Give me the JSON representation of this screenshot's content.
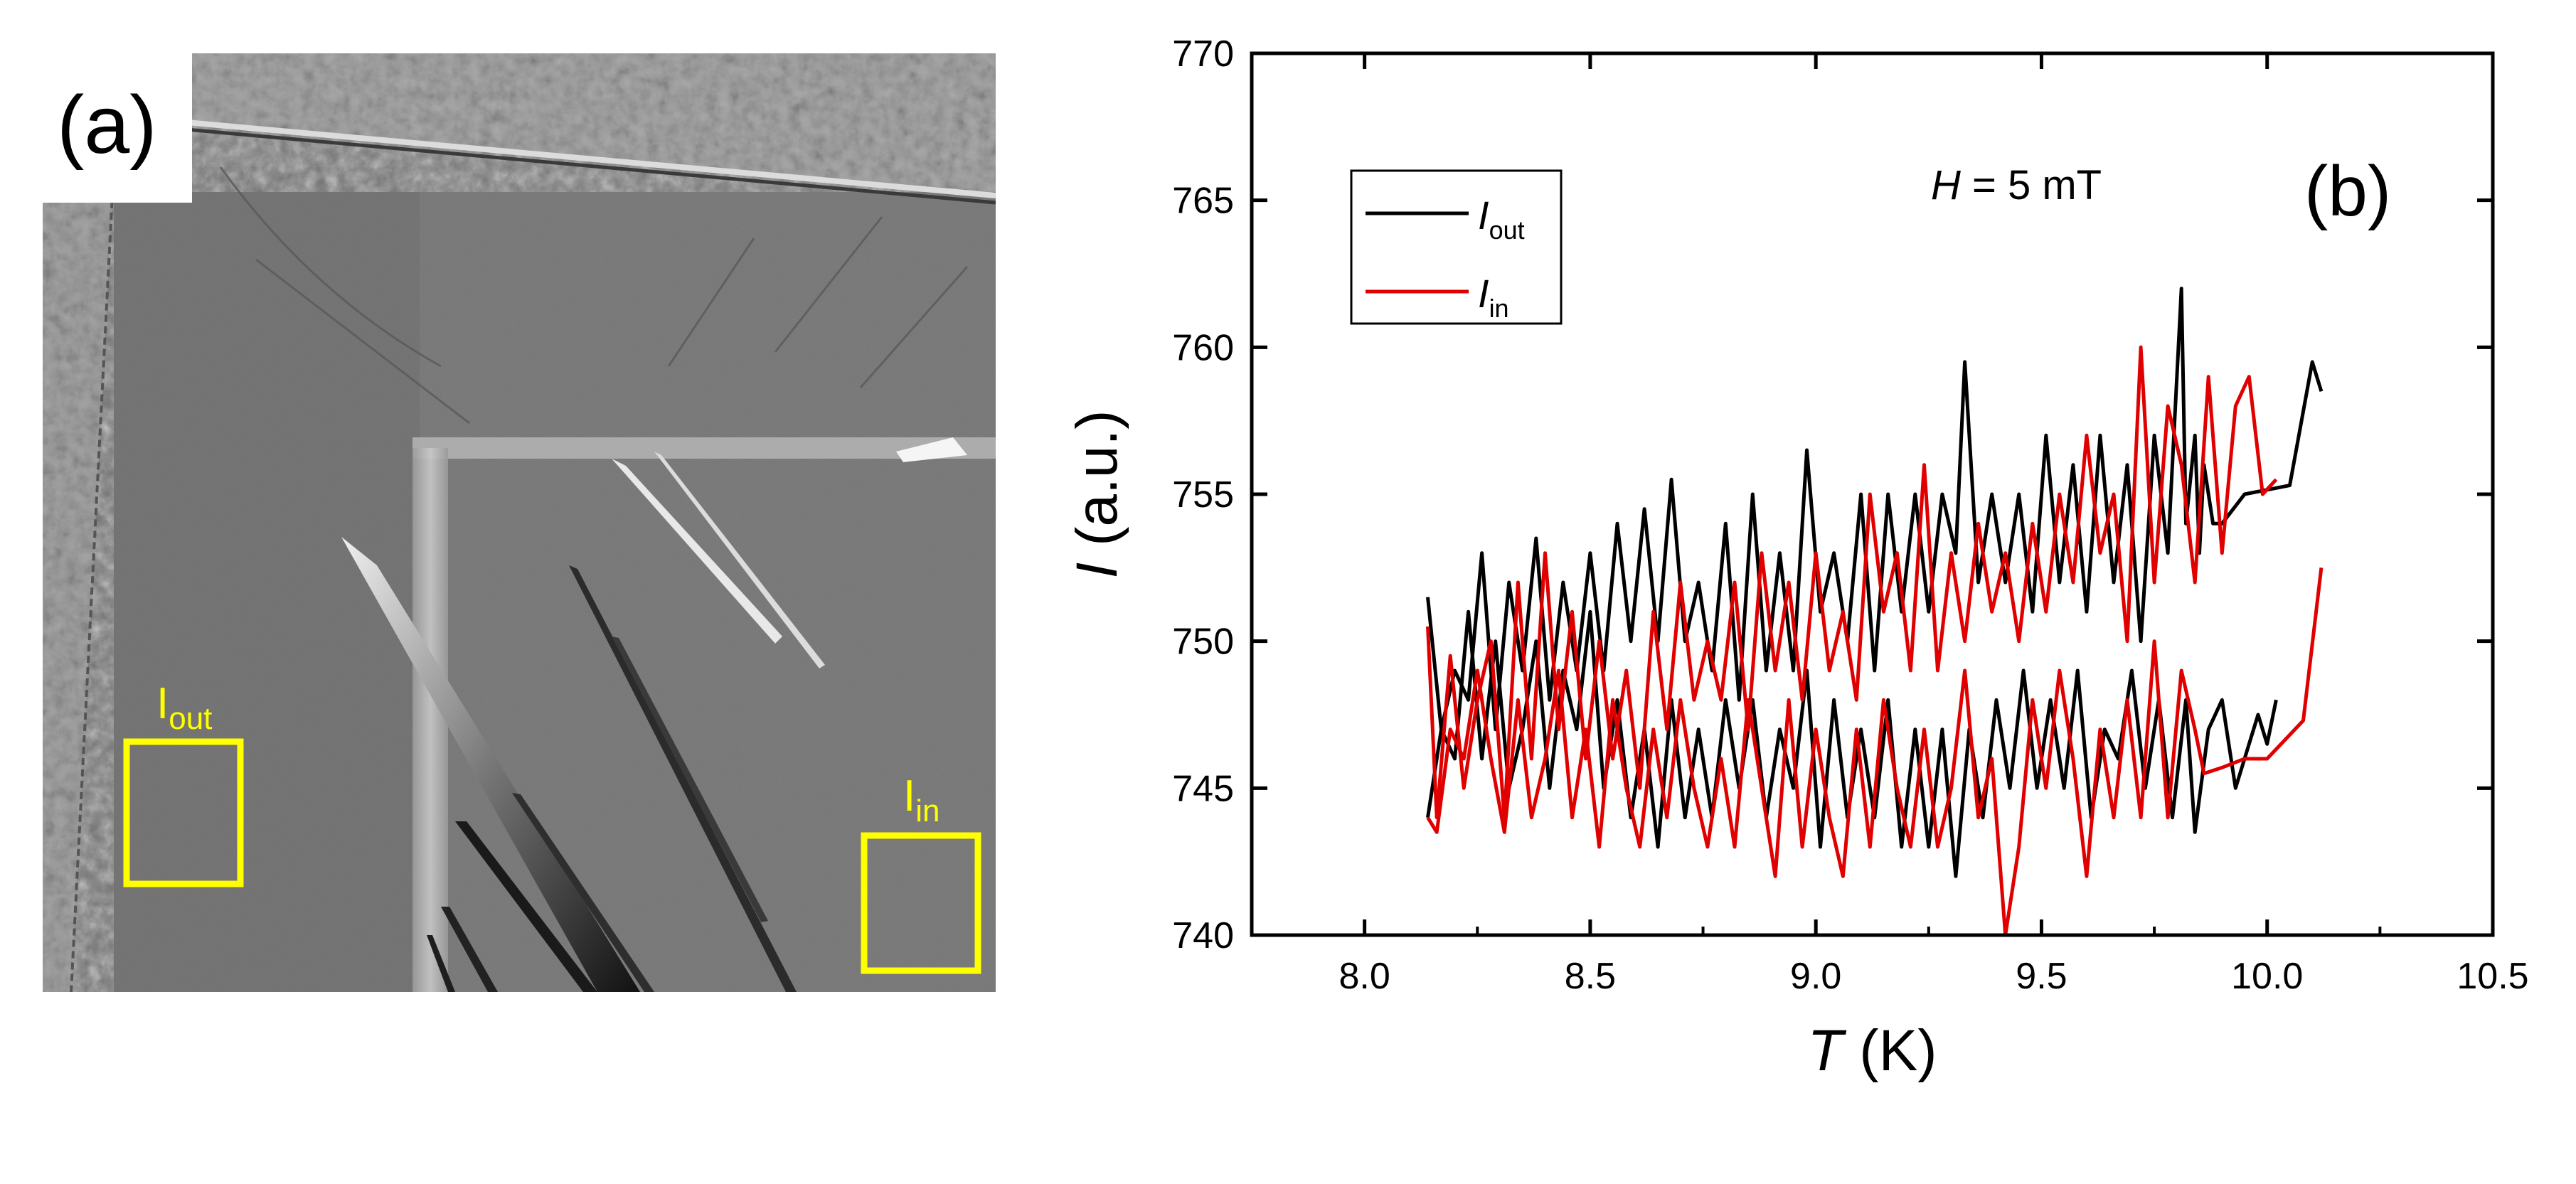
{
  "panel_a": {
    "label": "(a)",
    "roi_out": {
      "main": "I",
      "sub": "out"
    },
    "roi_in": {
      "main": "I",
      "sub": "in"
    },
    "roi_color": "#ffff00"
  },
  "chart_data": {
    "type": "line",
    "panel_label": "(b)",
    "annotation": {
      "italic": "H",
      "rest": " = 5 mT"
    },
    "xlabel": {
      "italic": "T",
      "rest": " (K)"
    },
    "ylabel": {
      "italic": "I",
      "rest": " (a.u.)"
    },
    "xlim": [
      7.75,
      10.5
    ],
    "ylim": [
      740,
      770
    ],
    "xticks": [
      8.0,
      8.5,
      9.0,
      9.5,
      10.0,
      10.5
    ],
    "xtick_labels": [
      "8.0",
      "8.5",
      "9.0",
      "9.5",
      "10.0",
      "10.5"
    ],
    "yticks": [
      740,
      745,
      750,
      755,
      760,
      765,
      770
    ],
    "ytick_labels": [
      "740",
      "745",
      "750",
      "755",
      "760",
      "765",
      "770"
    ],
    "legend_position": "top-left",
    "series": [
      {
        "name": "I",
        "name_sub": "out",
        "color": "#000000",
        "segments": [
          [
            [
              8.14,
              751.5
            ],
            [
              8.17,
              747
            ],
            [
              8.2,
              749
            ],
            [
              8.23,
              748
            ],
            [
              8.26,
              753
            ],
            [
              8.29,
              747
            ],
            [
              8.32,
              752
            ],
            [
              8.35,
              749
            ],
            [
              8.38,
              753.5
            ],
            [
              8.41,
              748
            ],
            [
              8.44,
              752
            ],
            [
              8.47,
              749
            ],
            [
              8.5,
              753
            ],
            [
              8.53,
              749
            ],
            [
              8.56,
              754
            ],
            [
              8.59,
              750
            ],
            [
              8.62,
              754.5
            ],
            [
              8.65,
              750
            ],
            [
              8.68,
              755.5
            ],
            [
              8.71,
              750
            ],
            [
              8.74,
              752
            ],
            [
              8.77,
              749
            ],
            [
              8.8,
              754
            ],
            [
              8.83,
              748
            ],
            [
              8.86,
              755
            ],
            [
              8.89,
              749
            ],
            [
              8.92,
              753
            ],
            [
              8.95,
              749
            ],
            [
              8.98,
              756.5
            ],
            [
              9.01,
              751
            ],
            [
              9.04,
              753
            ],
            [
              9.07,
              750
            ],
            [
              9.1,
              755
            ],
            [
              9.13,
              749
            ],
            [
              9.16,
              755
            ],
            [
              9.19,
              751
            ],
            [
              9.22,
              755
            ],
            [
              9.25,
              751
            ],
            [
              9.28,
              755
            ],
            [
              9.31,
              753
            ],
            [
              9.33,
              759.5
            ],
            [
              9.36,
              752
            ],
            [
              9.39,
              755
            ],
            [
              9.42,
              752
            ],
            [
              9.45,
              755
            ],
            [
              9.48,
              751
            ],
            [
              9.51,
              757
            ],
            [
              9.54,
              752
            ],
            [
              9.57,
              756
            ],
            [
              9.6,
              751
            ],
            [
              9.63,
              757
            ],
            [
              9.66,
              752
            ],
            [
              9.69,
              756
            ],
            [
              9.72,
              750
            ],
            [
              9.75,
              757
            ],
            [
              9.78,
              753
            ],
            [
              9.81,
              762
            ],
            [
              9.82,
              754
            ],
            [
              9.84,
              757
            ],
            [
              9.85,
              753
            ],
            [
              9.86,
              756
            ],
            [
              9.88,
              754
            ],
            [
              9.9,
              754
            ],
            [
              9.95,
              755
            ],
            [
              10.05,
              755.3
            ],
            [
              10.1,
              759.5
            ],
            [
              10.12,
              758.5
            ]
          ],
          [
            [
              8.14,
              744
            ],
            [
              8.17,
              747
            ],
            [
              8.2,
              746
            ],
            [
              8.23,
              751
            ],
            [
              8.26,
              746
            ],
            [
              8.29,
              750
            ],
            [
              8.32,
              745
            ],
            [
              8.35,
              747
            ],
            [
              8.38,
              750
            ],
            [
              8.41,
              745
            ],
            [
              8.44,
              749
            ],
            [
              8.47,
              747
            ],
            [
              8.5,
              751
            ],
            [
              8.53,
              745
            ],
            [
              8.56,
              748
            ],
            [
              8.59,
              744
            ],
            [
              8.62,
              747
            ],
            [
              8.65,
              743
            ],
            [
              8.68,
              748
            ],
            [
              8.71,
              744
            ],
            [
              8.74,
              747
            ],
            [
              8.77,
              744
            ],
            [
              8.8,
              748
            ],
            [
              8.83,
              745
            ],
            [
              8.86,
              748
            ],
            [
              8.89,
              744
            ],
            [
              8.92,
              747
            ],
            [
              8.95,
              745
            ],
            [
              8.98,
              749
            ],
            [
              9.01,
              743
            ],
            [
              9.04,
              748
            ],
            [
              9.07,
              744
            ],
            [
              9.1,
              747
            ],
            [
              9.13,
              744
            ],
            [
              9.16,
              748
            ],
            [
              9.19,
              743
            ],
            [
              9.22,
              747
            ],
            [
              9.25,
              743
            ],
            [
              9.28,
              747
            ],
            [
              9.31,
              742
            ],
            [
              9.34,
              747
            ],
            [
              9.37,
              744
            ],
            [
              9.4,
              748
            ],
            [
              9.43,
              745
            ],
            [
              9.46,
              749
            ],
            [
              9.49,
              745
            ],
            [
              9.52,
              748
            ],
            [
              9.55,
              745
            ],
            [
              9.58,
              749
            ],
            [
              9.61,
              744
            ],
            [
              9.64,
              747
            ],
            [
              9.67,
              746
            ],
            [
              9.7,
              749
            ],
            [
              9.73,
              745
            ],
            [
              9.76,
              748
            ],
            [
              9.79,
              744
            ],
            [
              9.82,
              748
            ],
            [
              9.84,
              743.5
            ],
            [
              9.87,
              747
            ],
            [
              9.9,
              748
            ],
            [
              9.93,
              745
            ],
            [
              9.96,
              746.5
            ],
            [
              9.98,
              747.5
            ],
            [
              10.0,
              746.5
            ],
            [
              10.02,
              748
            ]
          ]
        ]
      },
      {
        "name": "I",
        "name_sub": "in",
        "color": "#e00000",
        "segments": [
          [
            [
              8.14,
              750.5
            ],
            [
              8.16,
              744
            ],
            [
              8.19,
              749.5
            ],
            [
              8.22,
              745
            ],
            [
              8.25,
              748
            ],
            [
              8.28,
              750
            ],
            [
              8.31,
              744
            ],
            [
              8.34,
              752
            ],
            [
              8.37,
              746
            ],
            [
              8.4,
              753
            ],
            [
              8.43,
              747
            ],
            [
              8.46,
              751
            ],
            [
              8.49,
              746
            ],
            [
              8.52,
              750
            ],
            [
              8.55,
              746
            ],
            [
              8.58,
              749
            ],
            [
              8.61,
              745
            ],
            [
              8.64,
              751
            ],
            [
              8.67,
              747
            ],
            [
              8.7,
              752
            ],
            [
              8.73,
              748
            ],
            [
              8.76,
              750
            ],
            [
              8.79,
              748
            ],
            [
              8.82,
              752
            ],
            [
              8.85,
              747
            ],
            [
              8.88,
              753
            ],
            [
              8.91,
              749
            ],
            [
              8.94,
              752
            ],
            [
              8.97,
              748
            ],
            [
              9.0,
              753
            ],
            [
              9.03,
              749
            ],
            [
              9.06,
              751
            ],
            [
              9.09,
              748
            ],
            [
              9.12,
              755
            ],
            [
              9.15,
              751
            ],
            [
              9.18,
              753
            ],
            [
              9.21,
              749
            ],
            [
              9.24,
              756
            ],
            [
              9.27,
              749
            ],
            [
              9.3,
              753
            ],
            [
              9.33,
              750
            ],
            [
              9.36,
              754
            ],
            [
              9.39,
              751
            ],
            [
              9.42,
              753
            ],
            [
              9.45,
              750
            ],
            [
              9.48,
              754
            ],
            [
              9.51,
              751
            ],
            [
              9.54,
              755
            ],
            [
              9.57,
              752
            ],
            [
              9.6,
              757
            ],
            [
              9.63,
              753
            ],
            [
              9.66,
              755
            ],
            [
              9.69,
              750
            ],
            [
              9.72,
              760
            ],
            [
              9.75,
              752
            ],
            [
              9.78,
              758
            ],
            [
              9.81,
              756
            ],
            [
              9.84,
              752
            ],
            [
              9.87,
              759
            ],
            [
              9.9,
              753
            ],
            [
              9.93,
              758
            ],
            [
              9.96,
              759
            ],
            [
              9.99,
              755
            ],
            [
              10.02,
              755.5
            ]
          ],
          [
            [
              8.14,
              744
            ],
            [
              8.16,
              743.5
            ],
            [
              8.19,
              747
            ],
            [
              8.22,
              746
            ],
            [
              8.25,
              749
            ],
            [
              8.28,
              746
            ],
            [
              8.31,
              743.5
            ],
            [
              8.34,
              748
            ],
            [
              8.37,
              744
            ],
            [
              8.4,
              746
            ],
            [
              8.43,
              749
            ],
            [
              8.46,
              744
            ],
            [
              8.49,
              747
            ],
            [
              8.52,
              743
            ],
            [
              8.55,
              748
            ],
            [
              8.58,
              745
            ],
            [
              8.61,
              743
            ],
            [
              8.64,
              747
            ],
            [
              8.67,
              744
            ],
            [
              8.7,
              748
            ],
            [
              8.73,
              745
            ],
            [
              8.76,
              743
            ],
            [
              8.79,
              746
            ],
            [
              8.82,
              743
            ],
            [
              8.85,
              748
            ],
            [
              8.88,
              745
            ],
            [
              8.91,
              742
            ],
            [
              8.94,
              748
            ],
            [
              8.97,
              743
            ],
            [
              9.0,
              747
            ],
            [
              9.03,
              744
            ],
            [
              9.06,
              742
            ],
            [
              9.09,
              747
            ],
            [
              9.12,
              743
            ],
            [
              9.15,
              748
            ],
            [
              9.18,
              745
            ],
            [
              9.21,
              743
            ],
            [
              9.24,
              747
            ],
            [
              9.27,
              743
            ],
            [
              9.3,
              745
            ],
            [
              9.33,
              749
            ],
            [
              9.36,
              744
            ],
            [
              9.39,
              746
            ],
            [
              9.42,
              740
            ],
            [
              9.45,
              743
            ],
            [
              9.48,
              748
            ],
            [
              9.51,
              745
            ],
            [
              9.54,
              749
            ],
            [
              9.57,
              746
            ],
            [
              9.6,
              742
            ],
            [
              9.63,
              747
            ],
            [
              9.66,
              744
            ],
            [
              9.69,
              748
            ],
            [
              9.72,
              744
            ],
            [
              9.75,
              750
            ],
            [
              9.78,
              744
            ],
            [
              9.81,
              749
            ],
            [
              9.84,
              747
            ],
            [
              9.86,
              745.5
            ],
            [
              9.9,
              745.7
            ],
            [
              9.95,
              746
            ],
            [
              10.0,
              746
            ],
            [
              10.08,
              747.3
            ],
            [
              10.12,
              752.5
            ]
          ]
        ]
      }
    ]
  }
}
